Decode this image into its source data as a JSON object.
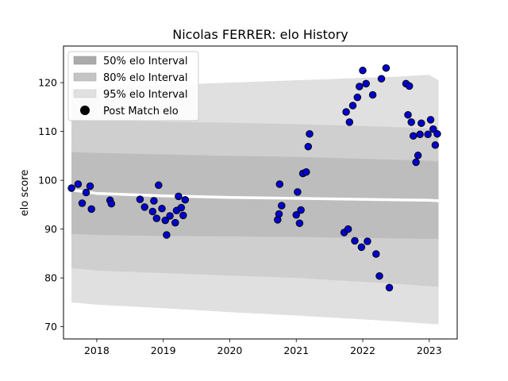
{
  "chart_data": {
    "type": "scatter",
    "title": "Nicolas FERRER: elo History",
    "xlabel": "",
    "ylabel": "elo score",
    "xlim": [
      2017.5,
      2023.42
    ],
    "ylim": [
      67.5,
      127.5
    ],
    "x_ticks": [
      {
        "value": 2018,
        "label": "2018"
      },
      {
        "value": 2019,
        "label": "2019"
      },
      {
        "value": 2020,
        "label": "2020"
      },
      {
        "value": 2021,
        "label": "2021"
      },
      {
        "value": 2022,
        "label": "2022"
      },
      {
        "value": 2023,
        "label": "2023"
      }
    ],
    "y_ticks": [
      {
        "value": 70,
        "label": "70"
      },
      {
        "value": 80,
        "label": "80"
      },
      {
        "value": 90,
        "label": "90"
      },
      {
        "value": 100,
        "label": "100"
      },
      {
        "value": 110,
        "label": "110"
      },
      {
        "value": 120,
        "label": "120"
      }
    ],
    "legend": {
      "position": "top-left",
      "entries": [
        "50% elo Interval",
        "80% elo Interval",
        "95% elo Interval",
        "Post Match elo"
      ]
    },
    "bands": [
      {
        "name": "95% elo Interval",
        "color": "#e0e0e0",
        "x": [
          2017.62,
          2018.0,
          2019.0,
          2020.0,
          2021.0,
          2021.5,
          2022.0,
          2022.5,
          2023.0,
          2023.14
        ],
        "lower": [
          75.0,
          74.5,
          73.8,
          73.0,
          72.3,
          71.9,
          71.5,
          71.1,
          70.6,
          70.5
        ],
        "upper": [
          118.5,
          119.0,
          119.5,
          120.0,
          120.5,
          120.7,
          121.0,
          121.2,
          121.6,
          120.5
        ]
      },
      {
        "name": "80% elo Interval",
        "color": "#cfcfcf",
        "x": [
          2017.62,
          2018.0,
          2019.0,
          2020.0,
          2021.0,
          2021.5,
          2022.0,
          2022.5,
          2023.0,
          2023.14
        ],
        "lower": [
          82.0,
          81.5,
          81.0,
          80.5,
          80.0,
          79.6,
          79.2,
          78.8,
          78.3,
          78.2
        ],
        "upper": [
          112.5,
          112.2,
          112.0,
          111.8,
          111.5,
          111.3,
          111.1,
          110.9,
          110.6,
          110.5
        ]
      },
      {
        "name": "50% elo Interval",
        "color": "#bdbdbd",
        "x": [
          2017.62,
          2018.0,
          2019.0,
          2020.0,
          2021.0,
          2021.5,
          2022.0,
          2022.5,
          2023.0,
          2023.14
        ],
        "lower": [
          89.0,
          88.8,
          88.6,
          88.5,
          88.4,
          88.3,
          88.2,
          88.1,
          88.0,
          88.0
        ],
        "upper": [
          105.8,
          105.6,
          105.3,
          105.0,
          104.8,
          104.6,
          104.4,
          104.2,
          104.0,
          103.9
        ]
      }
    ],
    "elo_line": {
      "x": [
        2017.62,
        2018.0,
        2019.0,
        2020.0,
        2021.0,
        2021.5,
        2022.0,
        2022.5,
        2023.0,
        2023.14
      ],
      "y": [
        98.0,
        97.3,
        96.8,
        96.5,
        96.3,
        96.2,
        96.1,
        96.0,
        95.9,
        95.8
      ]
    },
    "series": [
      {
        "name": "Post Match elo",
        "color": "#0000cc",
        "x": [
          2017.62,
          2017.72,
          2017.78,
          2017.84,
          2017.9,
          2017.92,
          2018.2,
          2018.22,
          2018.65,
          2018.72,
          2018.84,
          2018.86,
          2018.9,
          2018.93,
          2018.98,
          2019.03,
          2019.05,
          2019.1,
          2019.18,
          2019.2,
          2019.23,
          2019.27,
          2019.3,
          2019.33,
          2020.72,
          2020.74,
          2020.75,
          2020.78,
          2021.0,
          2021.02,
          2021.05,
          2021.07,
          2021.1,
          2021.15,
          2021.18,
          2021.2,
          2021.72,
          2021.75,
          2021.78,
          2021.8,
          2021.85,
          2021.88,
          2021.92,
          2021.95,
          2021.98,
          2022.0,
          2022.05,
          2022.07,
          2022.15,
          2022.2,
          2022.25,
          2022.28,
          2022.35,
          2022.4,
          2022.65,
          2022.68,
          2022.7,
          2022.73,
          2022.76,
          2022.8,
          2022.83,
          2022.86,
          2022.88,
          2022.98,
          2023.02,
          2023.06,
          2023.09,
          2023.12
        ],
        "y": [
          98.4,
          99.2,
          95.3,
          97.5,
          98.8,
          94.1,
          95.9,
          95.2,
          96.1,
          94.5,
          93.6,
          95.8,
          92.2,
          99.0,
          94.2,
          91.8,
          88.8,
          92.7,
          91.3,
          93.8,
          96.7,
          94.4,
          92.8,
          96.0,
          91.9,
          93.1,
          99.2,
          94.8,
          92.9,
          97.6,
          91.2,
          93.9,
          101.4,
          101.7,
          106.9,
          109.5,
          89.3,
          114.0,
          90.0,
          111.9,
          115.3,
          87.6,
          117.0,
          119.2,
          86.3,
          122.5,
          119.8,
          87.5,
          117.5,
          84.9,
          80.4,
          120.8,
          123.0,
          78.0,
          119.8,
          113.4,
          119.3,
          111.9,
          109.1,
          103.7,
          105.1,
          109.4,
          111.7,
          109.4,
          112.4,
          110.5,
          107.2,
          109.5
        ]
      }
    ]
  }
}
